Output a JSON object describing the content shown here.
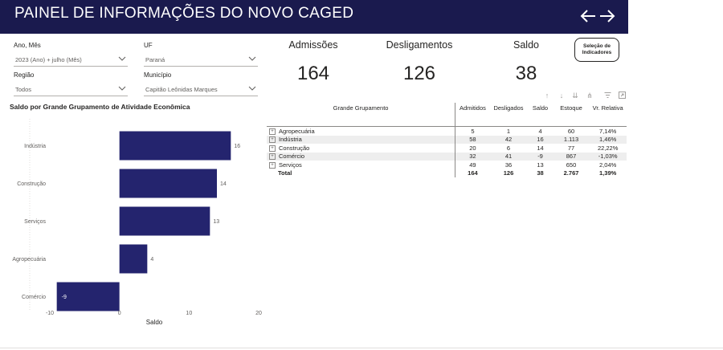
{
  "header": {
    "title": "PAINEL DE INFORMAÇÕES DO NOVO CAGED"
  },
  "slicers": {
    "ano_mes": {
      "label": "Ano, Mês",
      "value": "2023 (Ano) + julho (Mês)"
    },
    "uf": {
      "label": "UF",
      "value": "Paraná"
    },
    "regiao": {
      "label": "Região",
      "value": "Todos"
    },
    "municipio": {
      "label": "Município",
      "value": "Capitão Leônidas Marques"
    }
  },
  "kpis": {
    "admissoes": {
      "label": "Admissões",
      "value": "164"
    },
    "desligamentos": {
      "label": "Desligamentos",
      "value": "126"
    },
    "saldo": {
      "label": "Saldo",
      "value": "38"
    }
  },
  "indicator_button": {
    "line1": "Seleção de",
    "line2": "Indicadores"
  },
  "chart_data": {
    "type": "bar",
    "orientation": "horizontal",
    "title": "Saldo por Grande Grupamento de Atividade Econômica",
    "xlabel": "Saldo",
    "ylabel": "",
    "categories": [
      "Indústria",
      "Construção",
      "Serviços",
      "Agropecuária",
      "Comércio"
    ],
    "values": [
      16,
      14,
      13,
      4,
      -9
    ],
    "xlim": [
      -10,
      20
    ],
    "xticks": [
      -10,
      0,
      10,
      20
    ],
    "bar_color": "#24246e",
    "grid": false
  },
  "toolbar_icons": [
    "arrow-up-icon",
    "arrow-down-icon",
    "double-arrow-down-icon",
    "expand-hierarchy-icon",
    "filter-icon",
    "focus-mode-icon"
  ],
  "matrix": {
    "headers": [
      "Grande Grupamento",
      "Admitidos",
      "Desligados",
      "Saldo",
      "Estoque",
      "Vr. Relativa"
    ],
    "rows": [
      {
        "name": "Agropecuária",
        "admitidos": "5",
        "desligados": "1",
        "saldo": "4",
        "estoque": "60",
        "vr": "7,14%"
      },
      {
        "name": "Indústria",
        "admitidos": "58",
        "desligados": "42",
        "saldo": "16",
        "estoque": "1.113",
        "vr": "1,46%"
      },
      {
        "name": "Construção",
        "admitidos": "20",
        "desligados": "6",
        "saldo": "14",
        "estoque": "77",
        "vr": "22,22%"
      },
      {
        "name": "Comércio",
        "admitidos": "32",
        "desligados": "41",
        "saldo": "-9",
        "estoque": "867",
        "vr": "-1,03%"
      },
      {
        "name": "Serviços",
        "admitidos": "49",
        "desligados": "36",
        "saldo": "13",
        "estoque": "650",
        "vr": "2,04%"
      }
    ],
    "total": {
      "name": "Total",
      "admitidos": "164",
      "desligados": "126",
      "saldo": "38",
      "estoque": "2.767",
      "vr": "1,39%"
    }
  }
}
